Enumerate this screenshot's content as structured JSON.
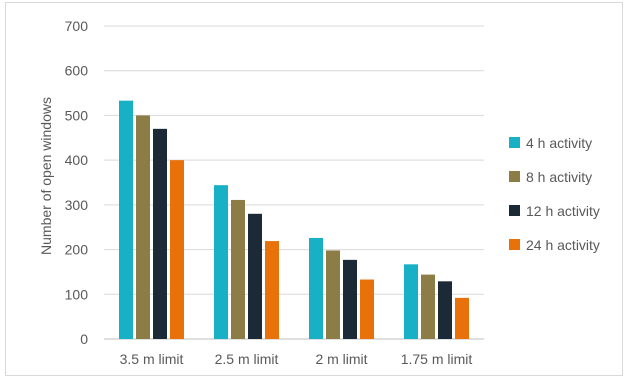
{
  "chart_data": {
    "type": "bar",
    "title": "",
    "xlabel": "",
    "ylabel": "Number of open windows",
    "categories": [
      "3.5 m limit",
      "2.5 m limit",
      "2 m limit",
      "1.75 m limit"
    ],
    "ylim": [
      0,
      700
    ],
    "yticks": [
      0,
      100,
      200,
      300,
      400,
      500,
      600,
      700
    ],
    "grid": true,
    "legend_position": "right",
    "series": [
      {
        "name": "4 h activity",
        "color": "#17b0c4",
        "values": [
          533,
          344,
          226,
          167
        ]
      },
      {
        "name": "8 h activity",
        "color": "#8b7d45",
        "values": [
          500,
          311,
          198,
          144
        ]
      },
      {
        "name": "12 h activity",
        "color": "#1b2a36",
        "values": [
          470,
          280,
          177,
          129
        ]
      },
      {
        "name": "24 h activity",
        "color": "#e8710a",
        "values": [
          400,
          219,
          133,
          92
        ]
      }
    ]
  }
}
